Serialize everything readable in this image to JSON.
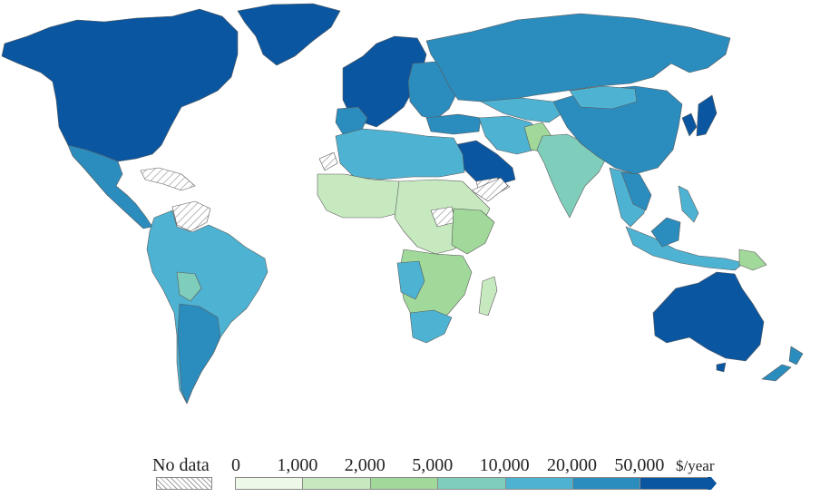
{
  "legend": {
    "no_data_label": "No data",
    "unit_label": "$/year",
    "ticks": [
      "0",
      "1,000",
      "2,000",
      "5,000",
      "10,000",
      "20,000",
      "50,000"
    ],
    "bins": [
      {
        "range": "0–1,000",
        "color": "#edf8e9"
      },
      {
        "range": "1,000–2,000",
        "color": "#c7e9c0"
      },
      {
        "range": "2,000–5,000",
        "color": "#a1d99b"
      },
      {
        "range": "5,000–10,000",
        "color": "#7fcdbb"
      },
      {
        "range": "10,000–20,000",
        "color": "#4eb3d3"
      },
      {
        "range": "20,000–50,000",
        "color": "#2b8cbe"
      },
      {
        "range": "50,000+",
        "color": "#0a56a0"
      }
    ],
    "no_data_pattern": "diagonal-hatch"
  }
}
